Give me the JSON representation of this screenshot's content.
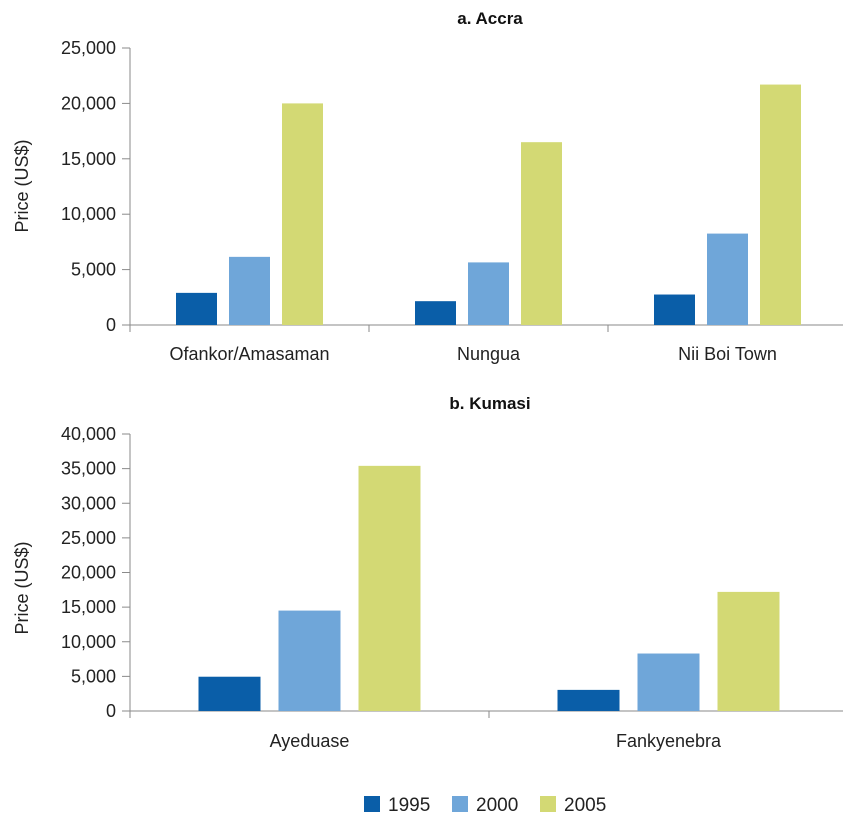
{
  "chart_data": [
    {
      "type": "bar",
      "title": "a. Accra",
      "xlabel": "",
      "ylabel": "Price (US$)",
      "ylim": [
        0,
        25000
      ],
      "yticks": [
        "0",
        "5,000",
        "10,000",
        "15,000",
        "20,000",
        "25,000"
      ],
      "categories": [
        "Ofankor/Amasaman",
        "Nungua",
        "Nii Boi Town"
      ],
      "grid": false,
      "series": [
        {
          "name": "1995",
          "values": [
            2900,
            2150,
            2750
          ]
        },
        {
          "name": "2000",
          "values": [
            6150,
            5650,
            8250
          ]
        },
        {
          "name": "2005",
          "values": [
            20000,
            16500,
            21700
          ]
        }
      ]
    },
    {
      "type": "bar",
      "title": "b. Kumasi",
      "xlabel": "",
      "ylabel": "Price (US$)",
      "ylim": [
        0,
        40000
      ],
      "yticks": [
        "0",
        "5,000",
        "10,000",
        "15,000",
        "20,000",
        "25,000",
        "30,000",
        "35,000",
        "40,000"
      ],
      "categories": [
        "Ayeduase",
        "Fankyenebra"
      ],
      "grid": false,
      "series": [
        {
          "name": "1995",
          "values": [
            4950,
            3050
          ]
        },
        {
          "name": "2000",
          "values": [
            14500,
            8300
          ]
        },
        {
          "name": "2005",
          "values": [
            35400,
            17200
          ]
        }
      ]
    }
  ],
  "legend": {
    "placement": "bottom",
    "items": [
      {
        "label": "1995",
        "color": "#0a5ea8"
      },
      {
        "label": "2000",
        "color": "#6fa6d9"
      },
      {
        "label": "2005",
        "color": "#d3d974"
      }
    ]
  },
  "colors": {
    "axis": "#8a8a8a",
    "text": "#222222"
  }
}
